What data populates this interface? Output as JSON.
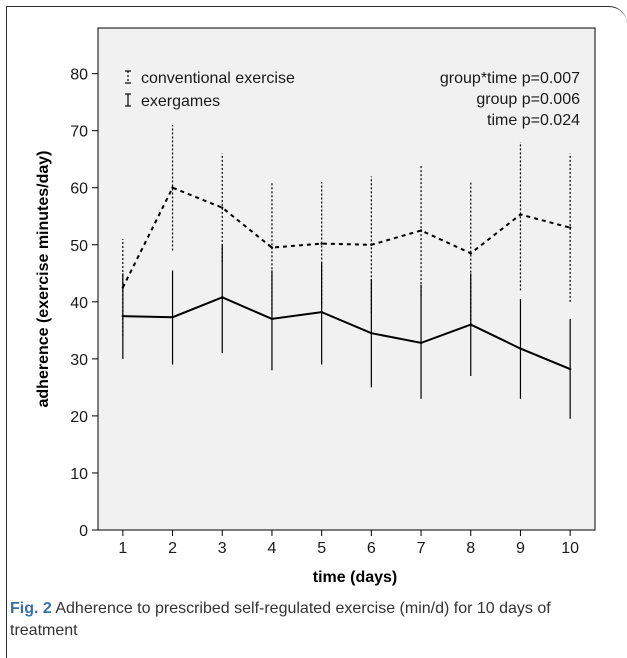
{
  "chart_data": {
    "type": "line",
    "xlabel": "time (days)",
    "ylabel": "adherence (exercise minutes/day)",
    "x": [
      1,
      2,
      3,
      4,
      5,
      6,
      7,
      8,
      9,
      10
    ],
    "xlim": [
      0.5,
      10.5
    ],
    "ylim": [
      0,
      88
    ],
    "yticks": [
      0,
      10,
      20,
      30,
      40,
      50,
      60,
      70,
      80
    ],
    "grid": false,
    "legend_position": "top-left",
    "series": [
      {
        "name": "conventional exercise",
        "style": "dashed",
        "values": [
          42.5,
          60,
          56.5,
          49.5,
          50.2,
          50,
          52.5,
          48.5,
          55.3,
          53
        ],
        "err_low": [
          34,
          49,
          47,
          38,
          39,
          38,
          41,
          36,
          42,
          40
        ],
        "err_high": [
          51,
          71,
          66,
          61,
          61,
          62,
          64,
          61,
          68,
          66
        ]
      },
      {
        "name": "exergames",
        "style": "solid",
        "values": [
          37.5,
          37.3,
          40.8,
          37,
          38.2,
          34.5,
          32.8,
          36,
          31.8,
          28.2
        ],
        "err_low": [
          30,
          29,
          31,
          28,
          29,
          25,
          23,
          27,
          23,
          19.5
        ],
        "err_high": [
          45,
          45.5,
          50,
          45.5,
          47,
          44,
          43,
          45,
          40.5,
          37
        ]
      }
    ],
    "annotations": [
      "group*time p=0.007",
      "group p=0.006",
      "time p=0.024"
    ]
  },
  "caption": {
    "label": "Fig. 2",
    "text": " Adherence to prescribed self-regulated exercise (min/d) for 10 days of treatment"
  },
  "colors": {
    "plot_bg": "#f1f1f1",
    "line": "#000000",
    "caption_label": "#3a6fa8"
  }
}
